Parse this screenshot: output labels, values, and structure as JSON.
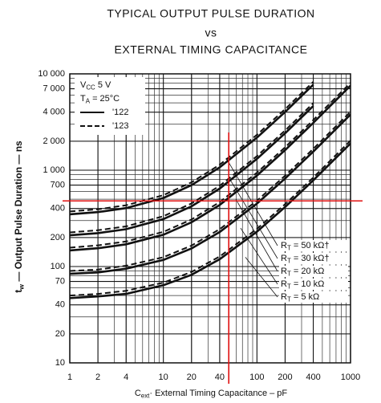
{
  "chart_data": {
    "type": "line",
    "title": [
      "TYPICAL OUTPUT PULSE DURATION",
      "vs",
      "EXTERNAL TIMING CAPACITANCE"
    ],
    "x_label": {
      "main": "C",
      "sub": "ext",
      "rest": "· External Timing Capacitance – pF"
    },
    "y_label": {
      "main": "t",
      "sub": "w",
      "rest": " — Output Pulse Duration — ns"
    },
    "x": [
      1,
      2,
      4,
      10,
      20,
      40,
      100,
      200,
      400,
      1000
    ],
    "xlim": [
      1,
      1000
    ],
    "ylim": [
      10,
      10000
    ],
    "log_x": true,
    "log_y": true,
    "grid": true,
    "minor_grid": true,
    "xticks": [
      1,
      2,
      4,
      10,
      20,
      40,
      100,
      200,
      400,
      1000
    ],
    "yticks": [
      10,
      20,
      40,
      70,
      100,
      200,
      400,
      700,
      {
        "value": 1000,
        "label": "1 000"
      },
      {
        "value": 2000,
        "label": "2 000"
      },
      {
        "value": 4000,
        "label": "4 000"
      },
      {
        "value": 7000,
        "label": "7 000"
      },
      {
        "value": 10000,
        "label": "10 000"
      }
    ],
    "conditions": [
      {
        "main": "V",
        "sub": "CC",
        "rest": "  5 V"
      },
      {
        "main": "T",
        "sub": "A",
        "rest": " = 25°C"
      }
    ],
    "line_styles": [
      {
        "name": "'122",
        "dashed": false
      },
      {
        "name": "'123",
        "dashed": true
      }
    ],
    "color": "#111111",
    "series": [
      {
        "name": {
          "main": "R",
          "sub": "T",
          "rest": " = 50 kΩ†"
        },
        "values": [
          349,
          367,
          404,
          515,
          700,
          1070,
          2180,
          4030,
          7730,
          null
        ],
        "dashed_values": [
          373,
          393,
          432,
          551,
          749,
          1140,
          2330,
          4310,
          8270,
          null
        ]
      },
      {
        "name": {
          "main": "R",
          "sub": "T",
          "rest": " = 30 kΩ†"
        },
        "values": [
          211,
          222,
          244,
          311,
          422,
          644,
          1310,
          2420,
          4640,
          null
        ],
        "dashed_values": [
          226,
          238,
          261,
          333,
          452,
          689,
          1400,
          2590,
          4960,
          null
        ]
      },
      {
        "name": {
          "main": "R",
          "sub": "T",
          "rest": " = 20 kΩ"
        },
        "values": [
          147,
          155,
          170,
          214,
          288,
          436,
          880,
          1620,
          3100,
          7540
        ],
        "dashed_values": [
          157,
          166,
          182,
          229,
          308,
          467,
          942,
          1730,
          3320,
          8070
        ]
      },
      {
        "name": {
          "main": "R",
          "sub": "T",
          "rest": " = 10 kΩ"
        },
        "values": [
          84,
          87,
          95,
          117,
          154,
          228,
          450,
          820,
          1560,
          3780
        ],
        "dashed_values": [
          90,
          93,
          102,
          125,
          165,
          244,
          482,
          877,
          1670,
          4040
        ]
      },
      {
        "name": {
          "main": "R",
          "sub": "T",
          "rest": " = 5 kΩ"
        },
        "values": [
          47,
          49,
          52,
          64,
          82,
          119,
          230,
          415,
          785,
          1895
        ],
        "dashed_values": [
          50,
          52,
          56,
          68,
          88,
          127,
          246,
          444,
          840,
          2030
        ]
      }
    ],
    "crosshair": {
      "x": 50,
      "y": 480,
      "color": "#e01010"
    }
  }
}
